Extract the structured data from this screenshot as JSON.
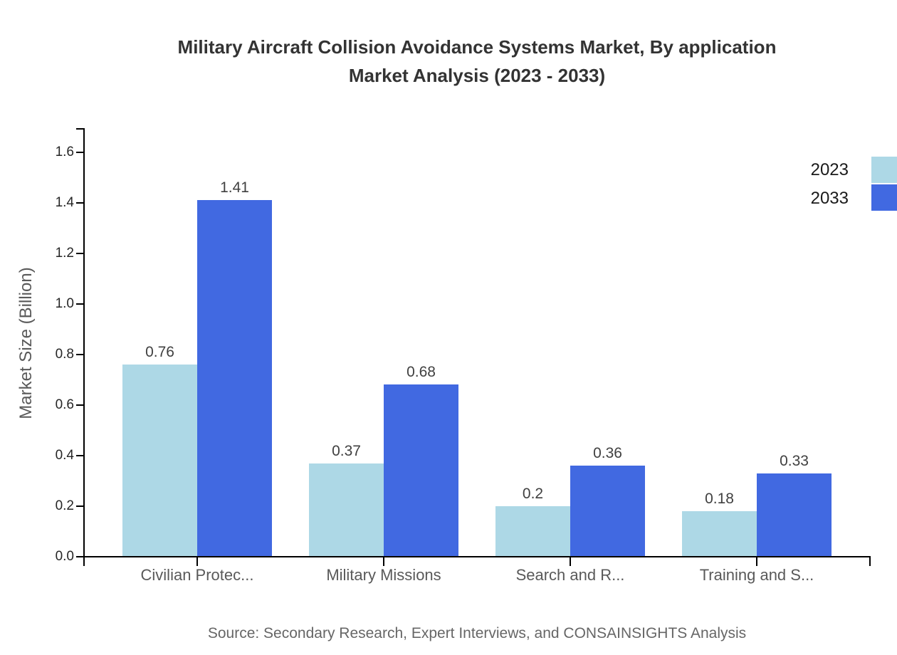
{
  "page": {
    "background": "#ffffff"
  },
  "title": {
    "line1": "Military Aircraft Collision Avoidance Systems Market, By application",
    "line2": "Market Analysis (2023 - 2033)"
  },
  "source": "Source: Secondary Research, Expert Interviews, and CONSAINSIGHTS Analysis",
  "chart_data": {
    "type": "bar",
    "title": "Military Aircraft Collision Avoidance Systems Market, By application Market Analysis (2023 - 2033)",
    "categories": [
      "Civilian Protec...",
      "Military Missions",
      "Search and R...",
      "Training and S..."
    ],
    "series": [
      {
        "name": "2023",
        "color": "#ADD8E6",
        "values": [
          0.76,
          0.37,
          0.2,
          0.18
        ]
      },
      {
        "name": "2033",
        "color": "#4169E1",
        "values": [
          1.41,
          0.68,
          0.36,
          0.33
        ]
      }
    ],
    "xlabel": "",
    "ylabel": "Market Size (Billion)",
    "ylim": [
      0,
      1.695
    ],
    "yticks": [
      0.0,
      0.2,
      0.4,
      0.6,
      0.8,
      1.0,
      1.2,
      1.4,
      1.6
    ],
    "grid": false,
    "legend_position": "top-right",
    "value_label_format": "plain",
    "axis_color": "#000000"
  }
}
